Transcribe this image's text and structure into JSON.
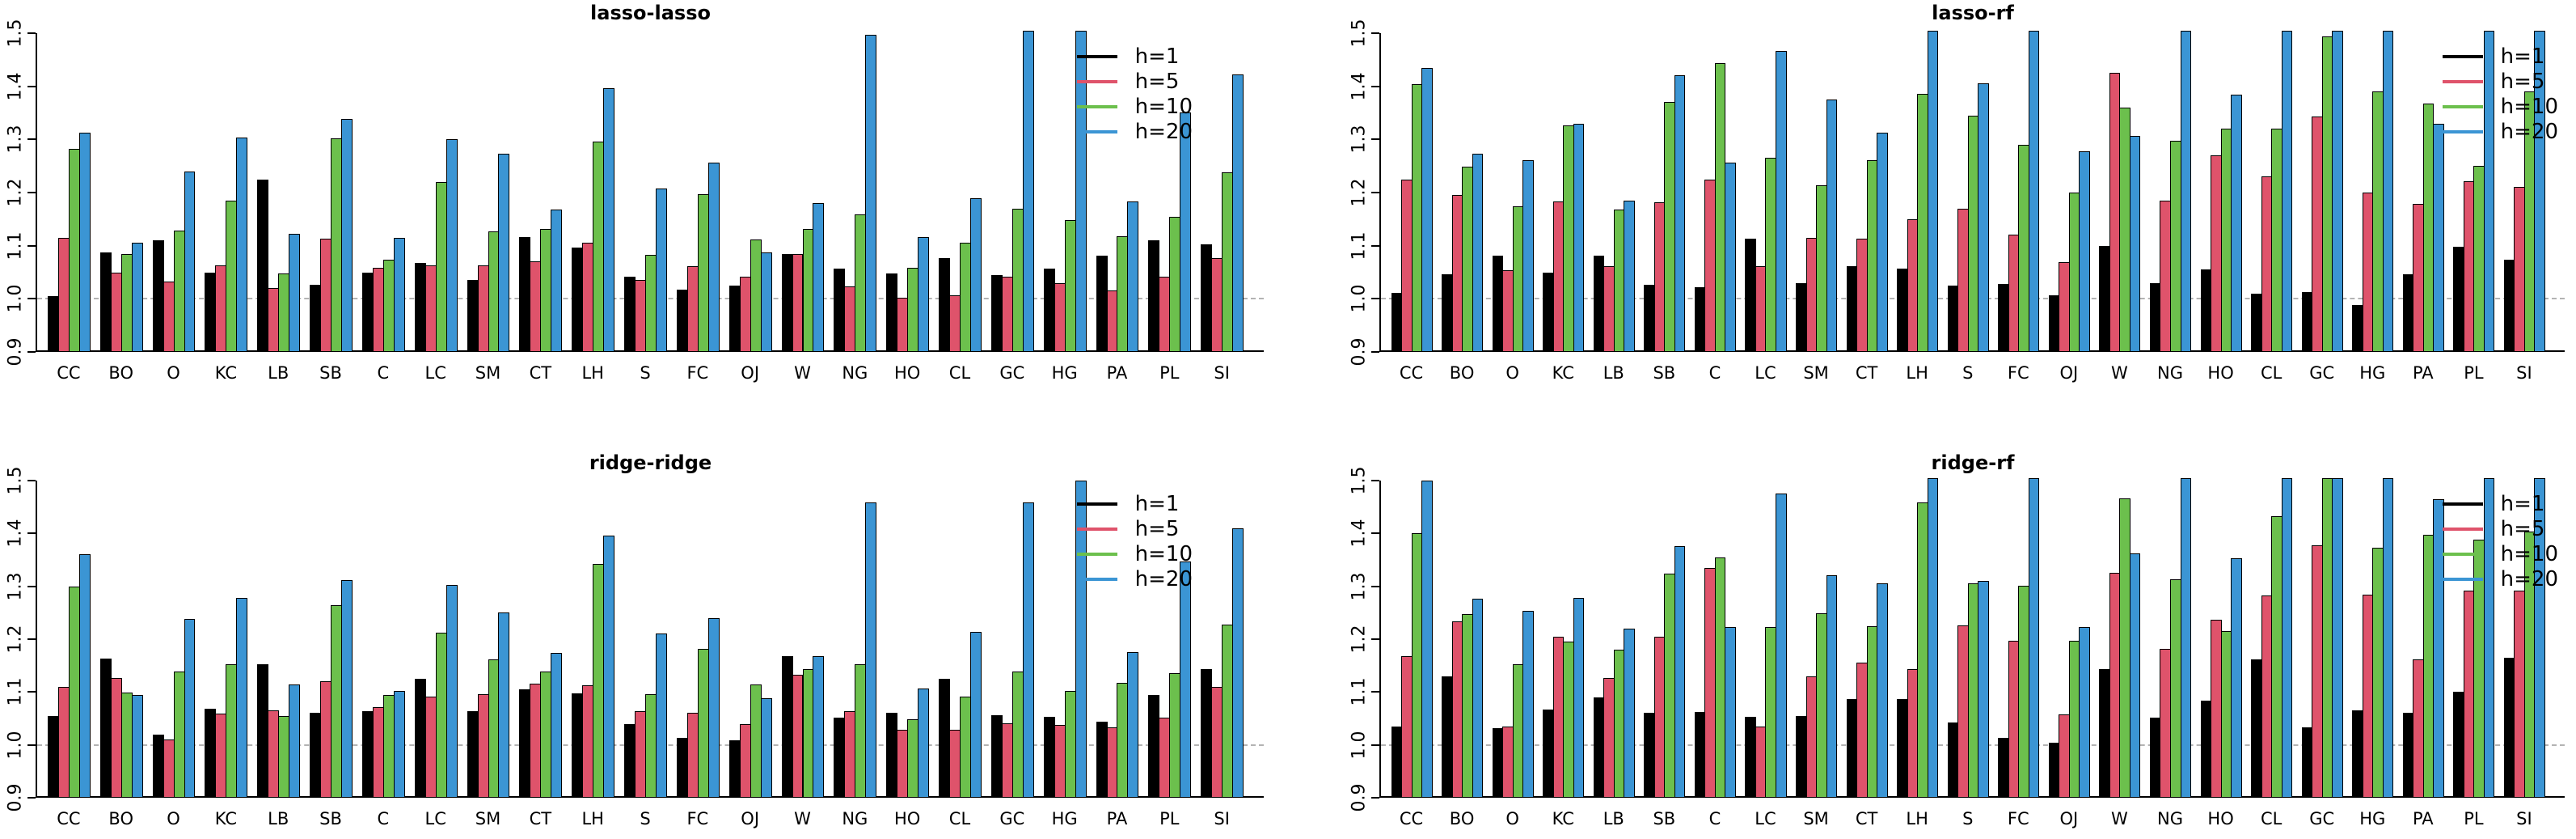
{
  "figure": {
    "background": "#ffffff",
    "description": "2x2 grid of grouped bar charts comparing forecast horizons",
    "clipped_note": "values recorded as 1.51 indicate bars clipped at the 1.5 axis limit (true value > 1.5)"
  },
  "palette": {
    "h1": "#000000",
    "h5": "#DF536B",
    "h10": "#6CC04D",
    "h20": "#3B95D4",
    "ref_line": "#b3b3b3"
  },
  "legend": {
    "items": [
      {
        "label": "h=1",
        "color": "#000000"
      },
      {
        "label": "h=5",
        "color": "#DF536B"
      },
      {
        "label": "h=10",
        "color": "#6CC04D"
      },
      {
        "label": "h=20",
        "color": "#3B95D4"
      }
    ]
  },
  "axis": {
    "ylim": [
      0.9,
      1.5
    ],
    "yticks": [
      "0.9",
      "1.0",
      "1.1",
      "1.2",
      "1.3",
      "1.4",
      "1.5"
    ],
    "ref_line": 1.0
  },
  "chart_data": [
    {
      "type": "bar",
      "title": "lasso-lasso",
      "xlabel": "",
      "ylabel": "",
      "ylim": [
        0.9,
        1.5
      ],
      "ref_line": 1.0,
      "grid": false,
      "legend_position": "top-right",
      "categories": [
        "CC",
        "BO",
        "O",
        "KC",
        "LB",
        "SB",
        "C",
        "LC",
        "SM",
        "CT",
        "LH",
        "S",
        "FC",
        "OJ",
        "W",
        "NG",
        "HO",
        "CL",
        "GC",
        "HG",
        "PA",
        "PL",
        "SI"
      ],
      "series": [
        {
          "name": "h=1",
          "values": [
            1.005,
            1.088,
            1.11,
            1.05,
            1.225,
            1.027,
            1.05,
            1.067,
            1.036,
            1.116,
            1.097,
            1.041,
            1.018,
            1.025,
            1.085,
            1.057,
            1.047,
            1.076,
            1.045,
            1.057,
            1.081,
            1.11,
            1.103
          ]
        },
        {
          "name": "h=5",
          "values": [
            1.115,
            1.05,
            1.032,
            1.063,
            1.02,
            1.113,
            1.058,
            1.063,
            1.063,
            1.071,
            1.105,
            1.035,
            1.062,
            1.041,
            1.085,
            1.023,
            1.002,
            1.007,
            1.042,
            1.03,
            1.015,
            1.042,
            1.077
          ]
        },
        {
          "name": "h=10",
          "values": [
            1.282,
            1.084,
            1.128,
            1.185,
            1.047,
            1.302,
            1.073,
            1.22,
            1.127,
            1.132,
            1.296,
            1.082,
            1.197,
            1.112,
            1.132,
            1.159,
            1.058,
            1.106,
            1.169,
            1.148,
            1.118,
            1.155,
            1.238
          ]
        },
        {
          "name": "h=20",
          "values": [
            1.312,
            1.105,
            1.24,
            1.303,
            1.123,
            1.338,
            1.115,
            1.301,
            1.273,
            1.168,
            1.397,
            1.208,
            1.256,
            1.088,
            1.18,
            1.497,
            1.117,
            1.189,
            1.51,
            1.51,
            1.183,
            1.351,
            1.423
          ]
        }
      ]
    },
    {
      "type": "bar",
      "title": "lasso-rf",
      "xlabel": "",
      "ylabel": "",
      "ylim": [
        0.9,
        1.5
      ],
      "ref_line": 1.0,
      "grid": false,
      "legend_position": "top-right",
      "categories": [
        "CC",
        "BO",
        "O",
        "KC",
        "LB",
        "SB",
        "C",
        "LC",
        "SM",
        "CT",
        "LH",
        "S",
        "FC",
        "OJ",
        "W",
        "NG",
        "HO",
        "CL",
        "GC",
        "HG",
        "PA",
        "PL",
        "SI"
      ],
      "series": [
        {
          "name": "h=1",
          "values": [
            1.011,
            1.046,
            1.081,
            1.05,
            1.081,
            1.026,
            1.022,
            1.113,
            1.03,
            1.061,
            1.057,
            1.025,
            1.028,
            1.007,
            1.1,
            1.029,
            1.056,
            1.01,
            1.012,
            0.989,
            1.046,
            1.098,
            1.073
          ]
        },
        {
          "name": "h=5",
          "values": [
            1.224,
            1.196,
            1.054,
            1.184,
            1.062,
            1.181,
            1.224,
            1.062,
            1.114,
            1.113,
            1.15,
            1.169,
            1.121,
            1.069,
            1.426,
            1.185,
            1.27,
            1.23,
            1.343,
            1.2,
            1.178,
            1.221,
            1.211
          ]
        },
        {
          "name": "h=10",
          "values": [
            1.404,
            1.248,
            1.174,
            1.327,
            1.168,
            1.37,
            1.444,
            1.265,
            1.214,
            1.261,
            1.386,
            1.344,
            1.29,
            1.2,
            1.36,
            1.297,
            1.32,
            1.32,
            1.494,
            1.391,
            1.368,
            1.251,
            1.391
          ]
        },
        {
          "name": "h=20",
          "values": [
            1.434,
            1.273,
            1.261,
            1.329,
            1.185,
            1.421,
            1.257,
            1.466,
            1.375,
            1.312,
            1.51,
            1.406,
            1.51,
            1.277,
            1.306,
            1.51,
            1.384,
            1.51,
            1.51,
            1.51,
            1.33,
            1.51,
            1.51
          ]
        }
      ]
    },
    {
      "type": "bar",
      "title": "ridge-ridge",
      "xlabel": "",
      "ylabel": "",
      "ylim": [
        0.9,
        1.5
      ],
      "ref_line": 1.0,
      "grid": false,
      "legend_position": "top-right",
      "categories": [
        "CC",
        "BO",
        "O",
        "KC",
        "LB",
        "SB",
        "C",
        "LC",
        "SM",
        "CT",
        "LH",
        "S",
        "FC",
        "OJ",
        "W",
        "NG",
        "HO",
        "CL",
        "GC",
        "HG",
        "PA",
        "PL",
        "SI"
      ],
      "series": [
        {
          "name": "h=1",
          "values": [
            1.055,
            1.163,
            1.019,
            1.068,
            1.152,
            1.06,
            1.064,
            1.125,
            1.064,
            1.105,
            1.097,
            1.039,
            1.014,
            1.008,
            1.168,
            1.051,
            1.061,
            1.125,
            1.056,
            1.053,
            1.044,
            1.095,
            1.144
          ]
        },
        {
          "name": "h=5",
          "values": [
            1.11,
            1.127,
            1.01,
            1.059,
            1.066,
            1.12,
            1.072,
            1.091,
            1.096,
            1.116,
            1.113,
            1.064,
            1.061,
            1.039,
            1.133,
            1.064,
            1.029,
            1.029,
            1.041,
            1.038,
            1.033,
            1.052,
            1.109
          ]
        },
        {
          "name": "h=10",
          "values": [
            1.3,
            1.099,
            1.139,
            1.152,
            1.054,
            1.264,
            1.095,
            1.213,
            1.162,
            1.139,
            1.343,
            1.096,
            1.181,
            1.115,
            1.143,
            1.153,
            1.048,
            1.092,
            1.139,
            1.102,
            1.117,
            1.135,
            1.228
          ]
        },
        {
          "name": "h=20",
          "values": [
            1.36,
            1.094,
            1.239,
            1.278,
            1.115,
            1.311,
            1.102,
            1.302,
            1.251,
            1.174,
            1.396,
            1.211,
            1.24,
            1.089,
            1.168,
            1.459,
            1.107,
            1.214,
            1.459,
            1.5,
            1.175,
            1.347,
            1.409
          ]
        }
      ]
    },
    {
      "type": "bar",
      "title": "ridge-rf",
      "xlabel": "",
      "ylabel": "",
      "ylim": [
        0.9,
        1.5
      ],
      "ref_line": 1.0,
      "grid": false,
      "legend_position": "top-right",
      "categories": [
        "CC",
        "BO",
        "O",
        "KC",
        "LB",
        "SB",
        "C",
        "LC",
        "SM",
        "CT",
        "LH",
        "S",
        "FC",
        "OJ",
        "W",
        "NG",
        "HO",
        "CL",
        "GC",
        "HG",
        "PA",
        "PL",
        "SI"
      ],
      "series": [
        {
          "name": "h=1",
          "values": [
            1.034,
            1.129,
            1.031,
            1.067,
            1.09,
            1.061,
            1.062,
            1.053,
            1.054,
            1.086,
            1.087,
            1.043,
            1.014,
            1.004,
            1.143,
            1.051,
            1.083,
            1.161,
            1.033,
            1.065,
            1.061,
            1.101,
            1.165
          ]
        },
        {
          "name": "h=5",
          "values": [
            1.168,
            1.234,
            1.035,
            1.205,
            1.127,
            1.204,
            1.334,
            1.035,
            1.13,
            1.155,
            1.143,
            1.226,
            1.197,
            1.057,
            1.325,
            1.181,
            1.237,
            1.283,
            1.377,
            1.284,
            1.162,
            1.292,
            1.292
          ]
        },
        {
          "name": "h=10",
          "values": [
            1.401,
            1.248,
            1.153,
            1.196,
            1.18,
            1.324,
            1.354,
            1.223,
            1.249,
            1.224,
            1.458,
            1.306,
            1.301,
            1.197,
            1.466,
            1.314,
            1.215,
            1.432,
            1.51,
            1.373,
            1.398,
            1.388,
            1.404
          ]
        },
        {
          "name": "h=20",
          "values": [
            1.5,
            1.276,
            1.254,
            1.278,
            1.22,
            1.376,
            1.223,
            1.476,
            1.321,
            1.305,
            1.51,
            1.31,
            1.51,
            1.223,
            1.363,
            1.51,
            1.353,
            1.51,
            1.51,
            1.51,
            1.465,
            1.51,
            1.51
          ]
        }
      ]
    }
  ]
}
